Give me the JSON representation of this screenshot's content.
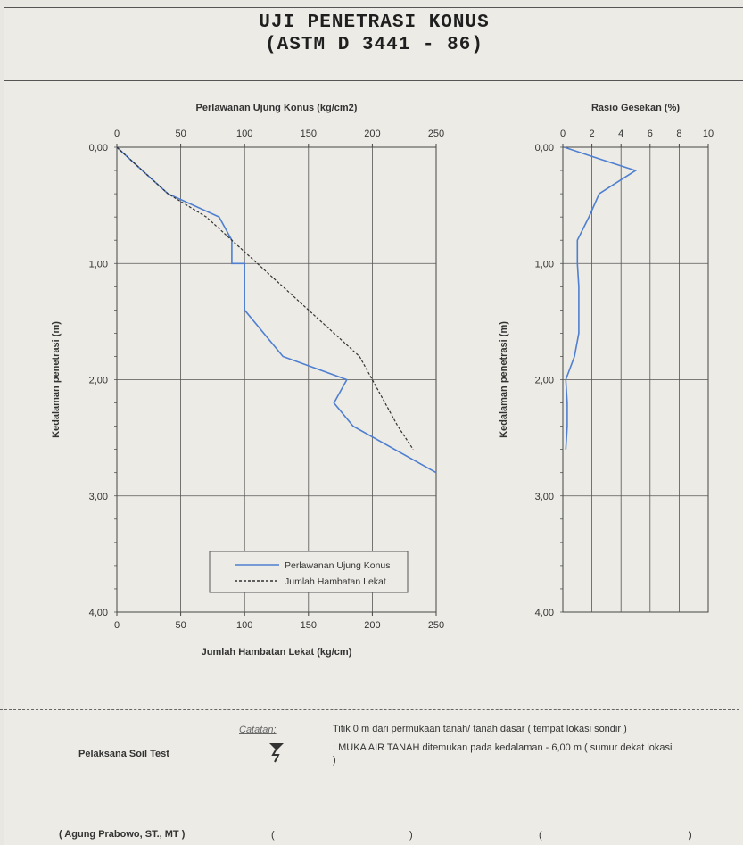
{
  "title_line1": "UJI PENETRASI KONUS",
  "title_line2": "(ASTM D 3441 - 86)",
  "chart_data": [
    {
      "type": "line",
      "title": "Perlawanan Ujung Konus (kg/cm2)",
      "xlabel_bottom": "Jumlah Hambatan Lekat (kg/cm)",
      "ylabel": "Kedalaman penetrasi (m)",
      "xlim": [
        0,
        250
      ],
      "ylim": [
        0,
        4
      ],
      "xticks": [
        "0",
        "50",
        "100",
        "150",
        "200",
        "250"
      ],
      "yticks": [
        "0,00",
        "1,00",
        "2,00",
        "3,00",
        "4,00"
      ],
      "grid": true,
      "legend_position": "bottom-right",
      "series": [
        {
          "name": "Perlawanan Ujung Konus",
          "color": "#4f7fd0",
          "style": "solid",
          "points": [
            [
              0,
              0
            ],
            [
              20,
              0.2
            ],
            [
              40,
              0.4
            ],
            [
              80,
              0.6
            ],
            [
              90,
              0.8
            ],
            [
              90,
              1.0
            ],
            [
              100,
              1.0
            ],
            [
              100,
              1.2
            ],
            [
              100,
              1.4
            ],
            [
              130,
              1.8
            ],
            [
              180,
              2.0
            ],
            [
              170,
              2.2
            ],
            [
              185,
              2.4
            ],
            [
              250,
              2.8
            ]
          ]
        },
        {
          "name": "Jumlah Hambatan Lekat",
          "color": "#333333",
          "style": "dashed",
          "points": [
            [
              0,
              0
            ],
            [
              20,
              0.2
            ],
            [
              40,
              0.4
            ],
            [
              70,
              0.6
            ],
            [
              90,
              0.8
            ],
            [
              110,
              1.0
            ],
            [
              130,
              1.2
            ],
            [
              150,
              1.4
            ],
            [
              170,
              1.6
            ],
            [
              190,
              1.8
            ],
            [
              200,
              2.0
            ],
            [
              210,
              2.2
            ],
            [
              220,
              2.4
            ],
            [
              232,
              2.6
            ]
          ]
        }
      ]
    },
    {
      "type": "line",
      "title": "Rasio Gesekan (%)",
      "ylabel": "Kedalaman penetrasi (m)",
      "xlim": [
        0,
        10
      ],
      "ylim": [
        0,
        4
      ],
      "xticks": [
        "0",
        "2",
        "4",
        "6",
        "8",
        "10"
      ],
      "yticks": [
        "0,00",
        "1,00",
        "2,00",
        "3,00",
        "4,00"
      ],
      "grid": true,
      "series": [
        {
          "color": "#4f7fd0",
          "style": "solid",
          "points": [
            [
              0.1,
              0
            ],
            [
              2.5,
              0.1
            ],
            [
              5.0,
              0.2
            ],
            [
              2.5,
              0.4
            ],
            [
              1.8,
              0.6
            ],
            [
              1.0,
              0.8
            ],
            [
              1.0,
              1.0
            ],
            [
              1.1,
              1.2
            ],
            [
              1.1,
              1.4
            ],
            [
              1.1,
              1.6
            ],
            [
              0.8,
              1.8
            ],
            [
              0.2,
              2.0
            ],
            [
              0.3,
              2.2
            ],
            [
              0.3,
              2.4
            ],
            [
              0.2,
              2.6
            ]
          ]
        }
      ]
    }
  ],
  "footer": {
    "catatan_label": "Catatan:",
    "note1": "Titik 0 m dari permukaan tanah/ tanah dasar ( tempat lokasi sondir )",
    "note2": ": MUKA AIR TANAH ditemukan pada kedalaman - 6,00 m ( sumur dekat lokasi",
    "note2_cont": ")",
    "executor_label": "Pelaksana Soil Test",
    "executor_name": "( Agung Prabowo, ST., MT )",
    "sig2_open": "(",
    "sig2_close": ")",
    "sig3_open": "(",
    "sig3_close": ")"
  }
}
